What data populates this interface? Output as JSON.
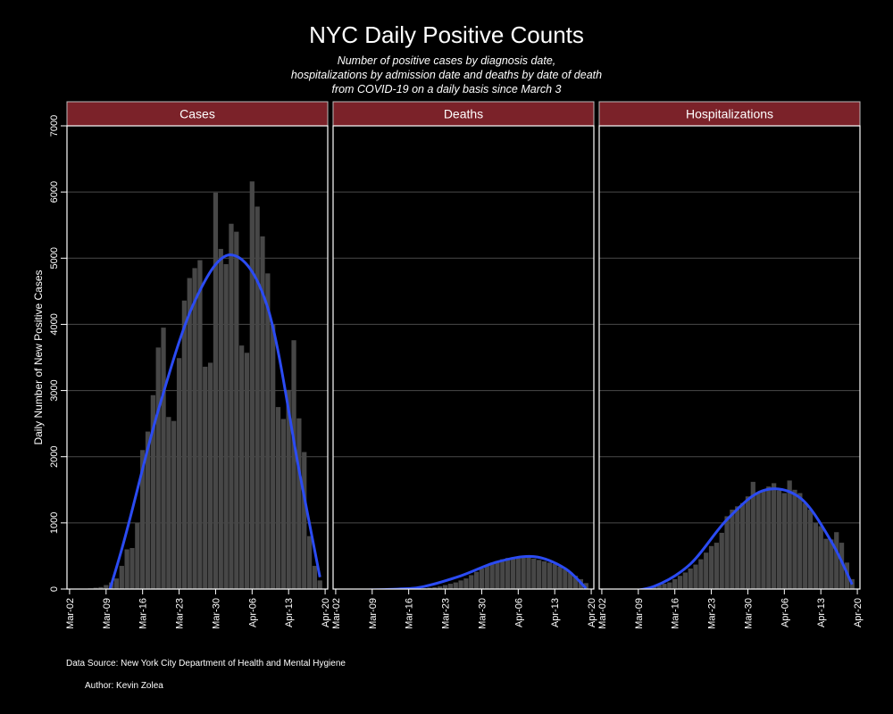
{
  "title": "NYC Daily Positive Counts",
  "subtitle_lines": [
    "Number of positive cases by diagnosis date,",
    "hospitalizations by admission date and deaths by date of death",
    "from COVID-19 on a daily basis since March 3"
  ],
  "footer": {
    "source": "Data Source: New York City Department of Health and Mental Hygiene",
    "author": "Author: Kevin Zolea"
  },
  "colors": {
    "background": "#000000",
    "strip": "#7b2229",
    "bar": "#474747",
    "smooth": "#2b4bf2",
    "grid": "#4a4a4a"
  },
  "chart_data": {
    "type": "bar",
    "ylabel": "Daily Number of New Positive Cases",
    "ylim": [
      0,
      7000
    ],
    "y_ticks": [
      0,
      1000,
      2000,
      3000,
      4000,
      5000,
      6000,
      7000
    ],
    "x_ticks": [
      "Mar-02",
      "Mar-09",
      "Mar-16",
      "Mar-23",
      "Mar-30",
      "Apr-06",
      "Apr-13",
      "Apr-20"
    ],
    "dates": [
      "Mar-03",
      "Mar-04",
      "Mar-05",
      "Mar-06",
      "Mar-07",
      "Mar-08",
      "Mar-09",
      "Mar-10",
      "Mar-11",
      "Mar-12",
      "Mar-13",
      "Mar-14",
      "Mar-15",
      "Mar-16",
      "Mar-17",
      "Mar-18",
      "Mar-19",
      "Mar-20",
      "Mar-21",
      "Mar-22",
      "Mar-23",
      "Mar-24",
      "Mar-25",
      "Mar-26",
      "Mar-27",
      "Mar-28",
      "Mar-29",
      "Mar-30",
      "Mar-31",
      "Apr-01",
      "Apr-02",
      "Apr-03",
      "Apr-04",
      "Apr-05",
      "Apr-06",
      "Apr-07",
      "Apr-08",
      "Apr-09",
      "Apr-10",
      "Apr-11",
      "Apr-12",
      "Apr-13",
      "Apr-14",
      "Apr-15",
      "Apr-16",
      "Apr-17",
      "Apr-18",
      "Apr-19"
    ],
    "grid": true,
    "smoothing": "loess",
    "facets": [
      {
        "name": "Cases",
        "values": [
          1,
          3,
          5,
          10,
          20,
          30,
          60,
          100,
          160,
          350,
          600,
          620,
          1000,
          2100,
          2380,
          2930,
          3650,
          3950,
          2600,
          2540,
          3490,
          4360,
          4700,
          4850,
          4970,
          3360,
          3420,
          5990,
          5140,
          4910,
          5520,
          5400,
          3680,
          3570,
          6160,
          5780,
          5330,
          4770,
          4000,
          2750,
          2570,
          3010,
          3760,
          2580,
          2070,
          800,
          350,
          130
        ],
        "smooth": [
          [
            3,
            -1200
          ],
          [
            10,
            600
          ],
          [
            17,
            2700
          ],
          [
            24,
            4350
          ],
          [
            31,
            5050
          ],
          [
            38,
            4250
          ],
          [
            44,
            1800
          ],
          [
            48,
            180
          ]
        ]
      },
      {
        "name": "Deaths",
        "values": [
          0,
          0,
          0,
          0,
          0,
          0,
          0,
          0,
          0,
          0,
          1,
          1,
          2,
          3,
          5,
          8,
          12,
          20,
          28,
          40,
          60,
          80,
          100,
          130,
          160,
          210,
          260,
          310,
          360,
          400,
          420,
          450,
          470,
          480,
          490,
          500,
          480,
          460,
          440,
          420,
          400,
          380,
          340,
          300,
          250,
          200,
          150,
          90
        ],
        "smooth": [
          [
            3,
            -20
          ],
          [
            12,
            0
          ],
          [
            17,
            40
          ],
          [
            24,
            200
          ],
          [
            31,
            410
          ],
          [
            38,
            490
          ],
          [
            44,
            310
          ],
          [
            48,
            10
          ]
        ]
      },
      {
        "name": "Hospitalizations",
        "values": [
          0,
          0,
          0,
          0,
          1,
          2,
          5,
          10,
          20,
          40,
          60,
          80,
          100,
          150,
          200,
          250,
          310,
          370,
          450,
          550,
          650,
          700,
          850,
          1100,
          1200,
          1250,
          1300,
          1400,
          1620,
          1450,
          1500,
          1550,
          1600,
          1490,
          1450,
          1640,
          1500,
          1450,
          1300,
          1200,
          1000,
          950,
          760,
          750,
          860,
          700,
          400,
          150
        ],
        "smooth": [
          [
            3,
            -50
          ],
          [
            10,
            40
          ],
          [
            17,
            380
          ],
          [
            24,
            1050
          ],
          [
            31,
            1490
          ],
          [
            38,
            1380
          ],
          [
            44,
            720
          ],
          [
            48,
            70
          ]
        ]
      }
    ]
  }
}
